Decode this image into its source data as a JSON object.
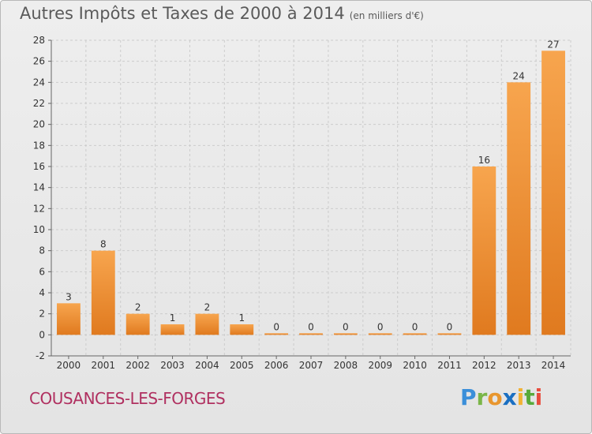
{
  "title": "Autres Impôts et Taxes de 2000 à 2014",
  "subtitle": "(en milliers d'€)",
  "commune": "COUSANCES-LES-FORGES",
  "logo": "Proxiti",
  "colors": {
    "bar_light": "#f7a54e",
    "bar_dark": "#e07a1f",
    "grid": "#cccccc",
    "commune": "#b03060"
  },
  "chart_data": {
    "type": "bar",
    "title": "Autres Impôts et Taxes de 2000 à 2014",
    "subtitle": "(en milliers d'€)",
    "categories": [
      "2000",
      "2001",
      "2002",
      "2003",
      "2004",
      "2005",
      "2006",
      "2007",
      "2008",
      "2009",
      "2010",
      "2011",
      "2012",
      "2013",
      "2014"
    ],
    "values": [
      3,
      8,
      2,
      1,
      2,
      1,
      0,
      0,
      0,
      0,
      0,
      0,
      16,
      24,
      27
    ],
    "ylim": [
      -2,
      28
    ],
    "yticks": [
      -2,
      0,
      2,
      4,
      6,
      8,
      10,
      12,
      14,
      16,
      18,
      20,
      22,
      24,
      26,
      28
    ],
    "grid": true,
    "xlabel": "",
    "ylabel": ""
  }
}
